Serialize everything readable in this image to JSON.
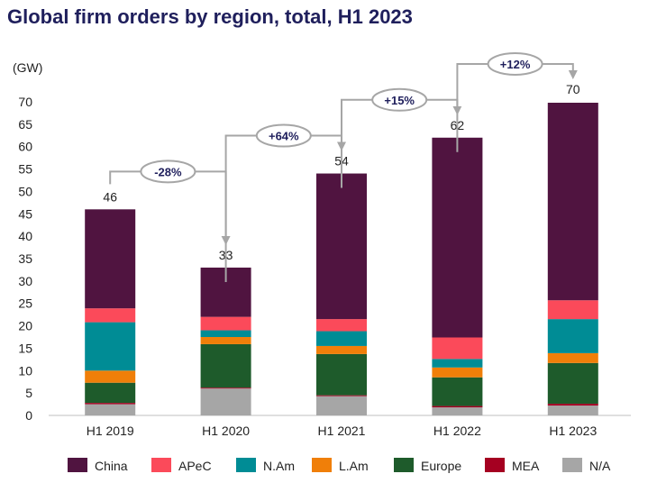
{
  "title": "Global firm orders by region, total, H1 2023",
  "chart_data": {
    "type": "bar",
    "stacked": true,
    "title": "Global firm orders by region, total, H1 2023",
    "ylabel": "(GW)",
    "xlabel": "",
    "ylim": [
      0,
      70
    ],
    "yticks": [
      0,
      5,
      10,
      15,
      20,
      25,
      30,
      35,
      40,
      45,
      50,
      55,
      60,
      65,
      70
    ],
    "categories": [
      "H1 2019",
      "H1 2020",
      "H1 2021",
      "H1 2022",
      "H1 2023"
    ],
    "totals": [
      "46",
      "33",
      "54",
      "62",
      "70"
    ],
    "total_values": [
      46,
      33,
      54,
      62,
      70
    ],
    "series": [
      {
        "name": "N/A",
        "color": "#a6a6a6",
        "values": [
          2.5,
          6.0,
          4.3,
          1.8,
          2.2
        ]
      },
      {
        "name": "MEA",
        "color": "#a50021",
        "values": [
          0.3,
          0.2,
          0.2,
          0.3,
          0.4
        ]
      },
      {
        "name": "Europe",
        "color": "#1e5b2b",
        "values": [
          4.5,
          9.7,
          9.2,
          6.4,
          9.1
        ]
      },
      {
        "name": "L.Am",
        "color": "#f07f09",
        "values": [
          2.7,
          1.6,
          1.8,
          2.2,
          2.2
        ]
      },
      {
        "name": "N.Am",
        "color": "#008c95",
        "values": [
          10.8,
          1.5,
          3.3,
          1.9,
          7.6
        ]
      },
      {
        "name": "APeC",
        "color": "#fb4a5a",
        "values": [
          3.1,
          3.0,
          2.7,
          4.8,
          4.2
        ]
      },
      {
        "name": "China",
        "color": "#501440",
        "values": [
          22.1,
          11.0,
          32.5,
          44.6,
          44.1
        ]
      }
    ],
    "legend_order": [
      "China",
      "APeC",
      "N.Am",
      "L.Am",
      "Europe",
      "MEA",
      "N/A"
    ],
    "legend_position": "bottom",
    "annotations": [
      {
        "from": 0,
        "to": 1,
        "label": "-28%"
      },
      {
        "from": 1,
        "to": 2,
        "label": "+64%"
      },
      {
        "from": 2,
        "to": 3,
        "label": "+15%"
      },
      {
        "from": 3,
        "to": 4,
        "label": "+12%"
      }
    ]
  }
}
